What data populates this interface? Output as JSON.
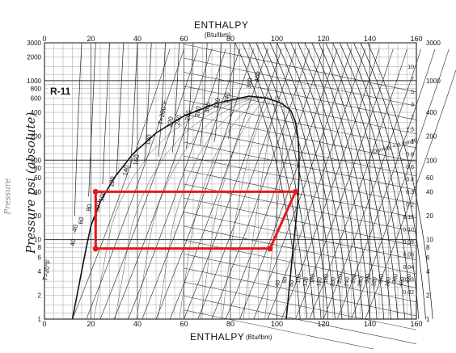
{
  "chart": {
    "top_axis_title": "ENTHALPY",
    "top_axis_unit": "(Btu/lbm)",
    "bottom_axis_title": "ENTHALPY",
    "bottom_axis_unit": "(Btu/lbm)",
    "refrigerant": "R-11",
    "handwritten_label": "Pressure  psi (absolute)",
    "faint_label": "Pressure"
  },
  "chart_data": {
    "type": "diagram",
    "x_ticks": [
      "0",
      "20",
      "40",
      "60",
      "80",
      "100",
      "120",
      "140",
      "160"
    ],
    "y_ticks": [
      "1",
      "2",
      "4",
      "6",
      "8",
      "10",
      "20",
      "40",
      "60",
      "80",
      "100",
      "200",
      "400",
      "600",
      "800",
      "1000",
      "2000",
      "3000"
    ],
    "right_ticks": [
      "1",
      "2",
      "4",
      "6",
      "8",
      "10",
      "20",
      "40",
      "60",
      "100",
      "200",
      "400",
      "1000",
      "3000"
    ],
    "density_ticks": [
      "10",
      "7",
      "5",
      "3",
      "2",
      "1.5",
      "1",
      "0.8",
      "0.6",
      "0.4",
      "0.3",
      "0.2",
      "0.15",
      "0.10",
      "0.08",
      "0.06",
      "0.04",
      "0.03",
      "0.02"
    ],
    "temp_labels": [
      "T=200°F",
      "220",
      "240",
      "260",
      "280",
      "300",
      "320",
      "340",
      "380",
      "400",
      "T=-60°F",
      "-40",
      "T=20°F",
      "180",
      "160",
      "140",
      "120",
      "100",
      "80",
      "60",
      "40"
    ],
    "vapor_temps": [
      "40",
      "60",
      "80",
      "100",
      "120",
      "140",
      "160",
      "180",
      "200",
      "220",
      "240",
      "260",
      "280",
      "300",
      "320",
      "340",
      "360",
      "380",
      "400",
      "420"
    ],
    "density_label": "Density = 2 lbm/ft³",
    "cycle": {
      "points": [
        [
          22,
          40
        ],
        [
          108,
          40
        ],
        [
          97,
          7.7
        ],
        [
          22,
          7.7
        ]
      ],
      "color": "#e31a1c"
    },
    "ylim": [
      1,
      3000
    ],
    "xlim": [
      0,
      160
    ]
  }
}
